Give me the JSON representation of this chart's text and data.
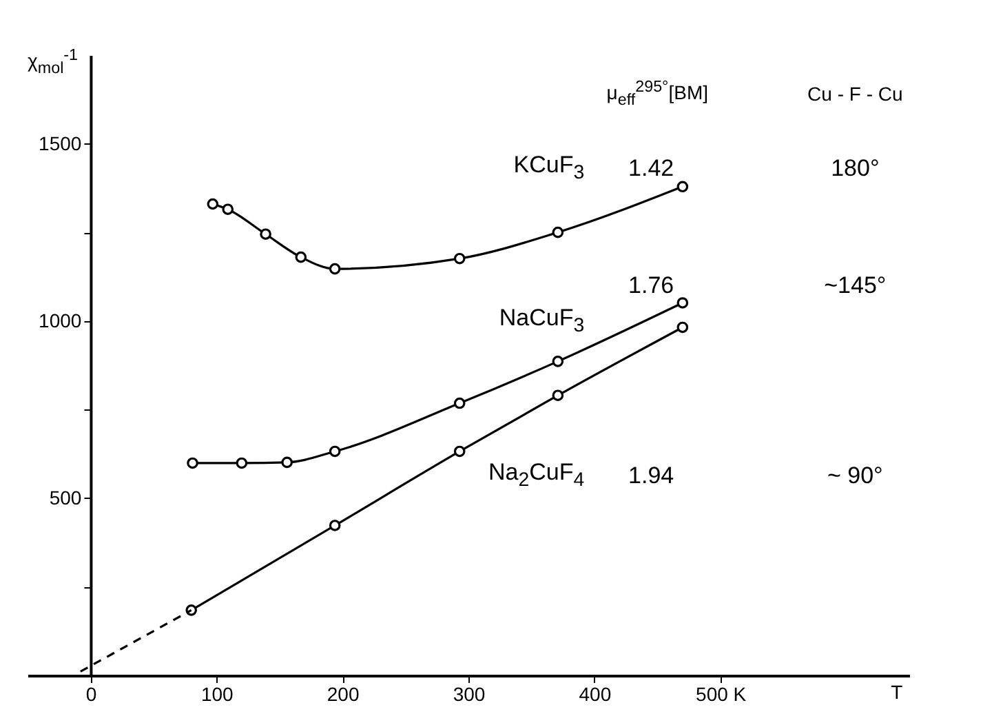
{
  "chart_data": {
    "type": "line",
    "xlabel": "T",
    "ylabel": "χ$_{mol}$$^{-1}$",
    "xlim": [
      -50,
      650
    ],
    "ylim": [
      0,
      1750
    ],
    "xticks": [
      0,
      100,
      200,
      300,
      400,
      {
        "value": 500,
        "label": "500 K"
      }
    ],
    "yticks": [
      {
        "value": 250,
        "label": null
      },
      500,
      {
        "value": 750,
        "label": null
      },
      1000,
      {
        "value": 1250,
        "label": null
      },
      1500
    ],
    "marker": "circle",
    "line_style": "solid",
    "series": [
      {
        "name": "KCuF$_{3}$",
        "color": "#000000",
        "x": [
          97,
          109,
          139,
          167,
          194,
          293,
          371,
          470
        ],
        "values": [
          1330,
          1315,
          1245,
          1180,
          1147,
          1176,
          1250,
          1379
        ]
      },
      {
        "name": "NaCuF$_{3}$",
        "color": "#000000",
        "x": [
          81,
          120,
          156,
          194,
          293,
          371,
          470
        ],
        "values": [
          599,
          599,
          601,
          632,
          768,
          886,
          1051
        ]
      },
      {
        "name": "Na$_{2}$CuF$_{4}$",
        "color": "#000000",
        "x": [
          80,
          194,
          293,
          371,
          470
        ],
        "values": [
          184,
          423,
          632,
          790,
          982
        ]
      },
      {
        "color": "#000000",
        "x": [
          -8,
          80
        ],
        "values": [
          11,
          184
        ],
        "marker": "none",
        "line_style": "dashed"
      }
    ],
    "annotations": [
      "μ$_{eff}$$^{295°}$[BM]",
      "Cu - F - Cu",
      "1.42",
      "180°",
      "1.76",
      "~145°",
      "1.94",
      "~ 90°"
    ]
  }
}
